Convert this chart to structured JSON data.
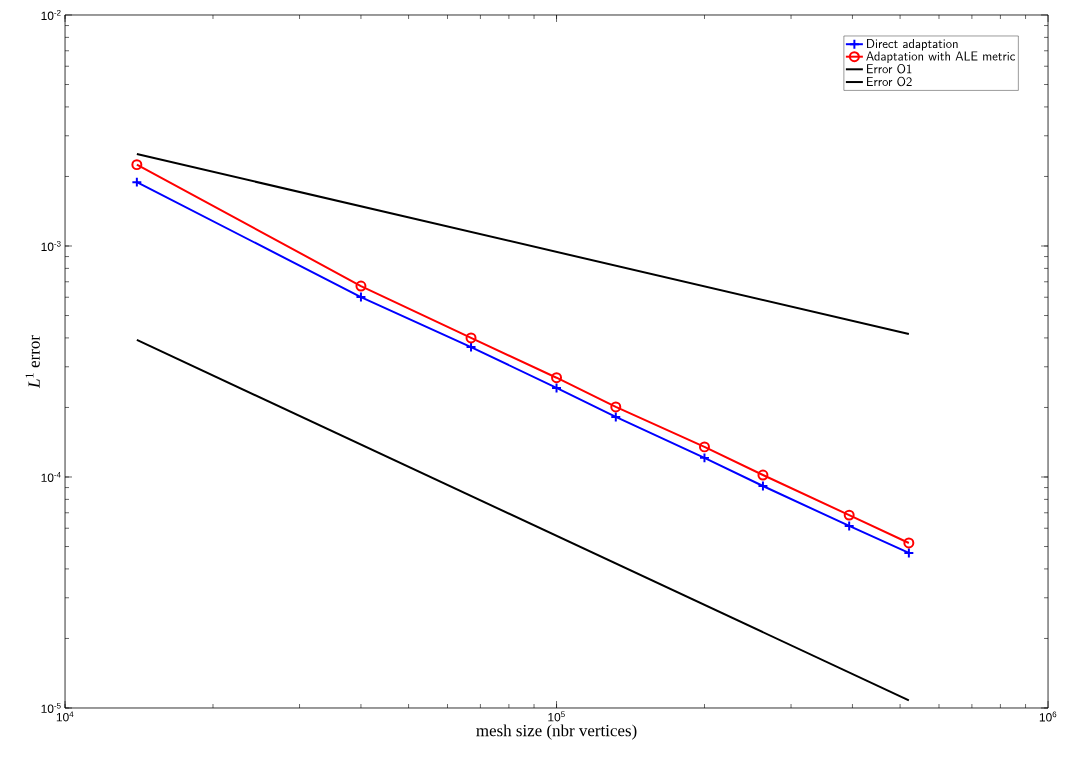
{
  "chart_data": {
    "type": "line",
    "xlabel": "mesh size (nbr vertices)",
    "ylabel": "*L*$^{1}$ error",
    "log": "xy",
    "grid": false,
    "legend": "top right",
    "xlim": [
      10000,
      1000000
    ],
    "ylim": [
      1e-05,
      0.01
    ],
    "xticks": [
      {
        "value": 10000,
        "label": "10$^{4}$"
      },
      {
        "value": 100000,
        "label": "10$^{5}$"
      },
      {
        "value": 1000000,
        "label": "10$^{6}$"
      }
    ],
    "yticks": [
      {
        "value": 1e-05,
        "label": "10$^{-5}$"
      },
      {
        "value": 0.0001,
        "label": "10$^{-4}$"
      },
      {
        "value": 0.001,
        "label": "10$^{-3}$"
      },
      {
        "value": 0.01,
        "label": "10$^{-2}$"
      }
    ],
    "series": [
      {
        "name": "Direct adaptation",
        "color": "#0000ff",
        "marker": "cross",
        "x": [
          14000,
          40000,
          67000,
          100000,
          132000,
          200000,
          263000,
          394000,
          521000
        ],
        "values": [
          0.00189,
          0.000601,
          0.000365,
          0.000243,
          0.000182,
          0.000121,
          9.14e-05,
          6.14e-05,
          4.69e-05
        ]
      },
      {
        "name": "Adaptation with ALE metric",
        "color": "#ff0000",
        "marker": "circle",
        "x": [
          14000,
          40000,
          67000,
          100000,
          132000,
          200000,
          263000,
          394000,
          521000
        ],
        "values": [
          0.00225,
          0.000671,
          0.0004,
          0.000269,
          0.000201,
          0.000135,
          0.000102,
          6.84e-05,
          5.18e-05
        ]
      },
      {
        "name": "Error O1",
        "color": "#000000",
        "marker": "none",
        "x": [
          14000,
          521000
        ],
        "values": [
          0.0025,
          0.000416
        ]
      },
      {
        "name": "Error O2",
        "color": "#000000",
        "marker": "none",
        "x": [
          14000,
          521000
        ],
        "values": [
          0.000392,
          1.08e-05
        ]
      }
    ]
  }
}
